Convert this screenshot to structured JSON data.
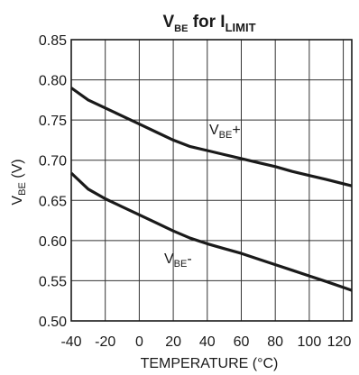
{
  "chart_data": {
    "type": "line",
    "title": {
      "main": "V",
      "main_sub": "BE",
      "mid": " for I",
      "end_sub": "LIMIT"
    },
    "xlabel": "TEMPERATURE (°C)",
    "ylabel": {
      "main": "V",
      "sub": "BE",
      "rest": " (V)"
    },
    "xlim": [
      -40,
      125
    ],
    "ylim": [
      0.5,
      0.85
    ],
    "x_ticks": [
      -40,
      -20,
      0,
      20,
      40,
      60,
      80,
      100,
      120
    ],
    "x_tick_labels": [
      "-40",
      "-20",
      "0",
      "20",
      "40",
      "60",
      "80",
      "100",
      "120"
    ],
    "y_ticks": [
      0.5,
      0.55,
      0.6,
      0.65,
      0.7,
      0.75,
      0.8,
      0.85
    ],
    "y_tick_labels": [
      "0.50",
      "0.55",
      "0.60",
      "0.65",
      "0.70",
      "0.75",
      "0.80",
      "0.85"
    ],
    "grid": true,
    "series": [
      {
        "name": "VBE+",
        "label": {
          "main": "V",
          "sub": "BE",
          "suffix": "+"
        },
        "x": [
          -40,
          -30,
          -20,
          -10,
          0,
          10,
          20,
          30,
          40,
          50,
          60,
          70,
          80,
          90,
          100,
          110,
          125
        ],
        "y": [
          0.79,
          0.775,
          0.765,
          0.755,
          0.745,
          0.735,
          0.725,
          0.717,
          0.712,
          0.707,
          0.702,
          0.697,
          0.692,
          0.686,
          0.681,
          0.676,
          0.668
        ]
      },
      {
        "name": "VBE-",
        "label": {
          "main": "V",
          "sub": "BE",
          "suffix": "-"
        },
        "x": [
          -40,
          -30,
          -20,
          -10,
          0,
          10,
          20,
          30,
          40,
          50,
          60,
          70,
          80,
          90,
          100,
          110,
          125
        ],
        "y": [
          0.684,
          0.664,
          0.652,
          0.642,
          0.632,
          0.622,
          0.612,
          0.603,
          0.596,
          0.59,
          0.584,
          0.577,
          0.57,
          0.563,
          0.556,
          0.549,
          0.538
        ]
      }
    ]
  }
}
